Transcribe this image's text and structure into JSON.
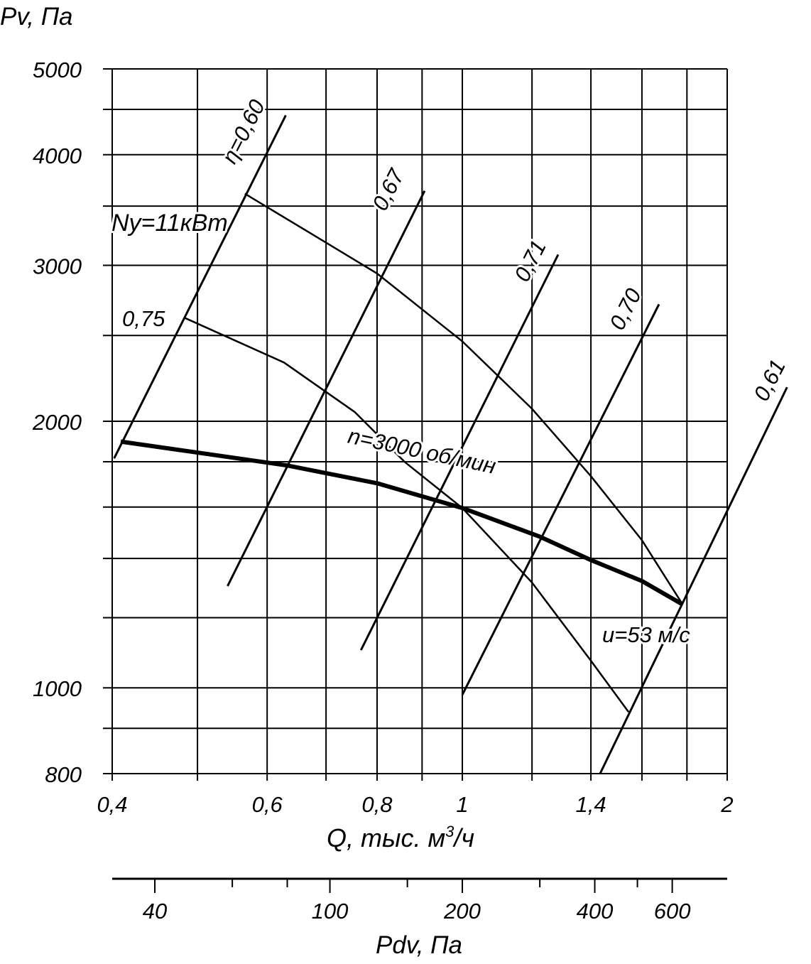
{
  "chart_data": {
    "type": "line",
    "title": "",
    "ylabel": "Pv, Па",
    "xlabel": "Q, тыс. м³/ч",
    "xlabel_parts": {
      "main": "Q, тыс. м",
      "sup": "3",
      "tail": "/ч"
    },
    "x_scale": "log",
    "y_scale": "log",
    "xlim": [
      0.4,
      2
    ],
    "ylim": [
      800,
      5000
    ],
    "x_ticks": [
      {
        "v": 0.4,
        "label": "0,4"
      },
      {
        "v": 0.6,
        "label": "0,6"
      },
      {
        "v": 0.8,
        "label": "0,8"
      },
      {
        "v": 1,
        "label": "1"
      },
      {
        "v": 1.4,
        "label": "1,4"
      },
      {
        "v": 2,
        "label": "2"
      }
    ],
    "x_grid": [
      0.4,
      0.5,
      0.6,
      0.7,
      0.8,
      0.9,
      1,
      1.2,
      1.4,
      1.6,
      1.8,
      2
    ],
    "y_ticks": [
      {
        "v": 800,
        "label": "800"
      },
      {
        "v": 1000,
        "label": "1000"
      },
      {
        "v": 2000,
        "label": "2000"
      },
      {
        "v": 3000,
        "label": "3000"
      },
      {
        "v": 4000,
        "label": "4000"
      },
      {
        "v": 5000,
        "label": "5000"
      }
    ],
    "y_grid": [
      800,
      900,
      1000,
      1200,
      1400,
      1600,
      1800,
      2000,
      2500,
      3000,
      3500,
      4000,
      4500,
      5000
    ],
    "grid": true,
    "secondary_axis": {
      "label": "Pdv, Па",
      "ticks_major": [
        {
          "v": 40,
          "label": "40"
        },
        {
          "v": 100,
          "label": "100"
        },
        {
          "v": 200,
          "label": "200"
        },
        {
          "v": 400,
          "label": "400"
        },
        {
          "v": 600,
          "label": "600"
        }
      ],
      "ticks_minor": [
        60,
        80,
        150,
        300,
        500
      ],
      "ref": {
        "q": 1,
        "pdv": 200
      }
    },
    "series": [
      {
        "name": "n=3000 об/мин",
        "kind": "pressure",
        "weight": "bold",
        "x": [
          0.409,
          0.632,
          0.8,
          1.0,
          1.224,
          1.4,
          1.6,
          1.78
        ],
        "y": [
          1897,
          1783,
          1702,
          1596,
          1482,
          1394,
          1320,
          1242
        ]
      },
      {
        "name": "Ny=11кВт",
        "kind": "power",
        "x": [
          0.566,
          0.676,
          0.8,
          1.0,
          1.2,
          1.4,
          1.6,
          1.78
        ],
        "y": [
          3614,
          3250,
          2937,
          2462,
          2066,
          1734,
          1468,
          1242
        ]
      },
      {
        "name": "0,75",
        "kind": "power",
        "x": [
          0.483,
          0.627,
          0.755,
          0.86,
          1.0,
          1.2,
          1.4,
          1.545
        ],
        "y": [
          2618,
          2330,
          2048,
          1799,
          1596,
          1315,
          1073,
          939
        ]
      }
    ],
    "efficiency_lines": [
      {
        "label": "η=0,60",
        "x": [
          0.402,
          0.63
        ],
        "y": [
          1816,
          4432
        ]
      },
      {
        "label": "0,67",
        "x": [
          0.541,
          0.906
        ],
        "y": [
          1303,
          3641
        ]
      },
      {
        "label": "0,71",
        "x": [
          0.767,
          1.285
        ],
        "y": [
          1103,
          3085
        ]
      },
      {
        "label": "0,70",
        "x": [
          1.0,
          1.673
        ],
        "y": [
          982,
          2711
        ]
      },
      {
        "label": "0,61",
        "x": [
          1.434,
          2.339
        ],
        "y": [
          800,
          2185
        ]
      }
    ],
    "annotations": {
      "speed": "n=3000 об/мин",
      "power": "Ny=11кВт",
      "power2": "0,75",
      "tip_speed": "u=53 м/с"
    }
  }
}
